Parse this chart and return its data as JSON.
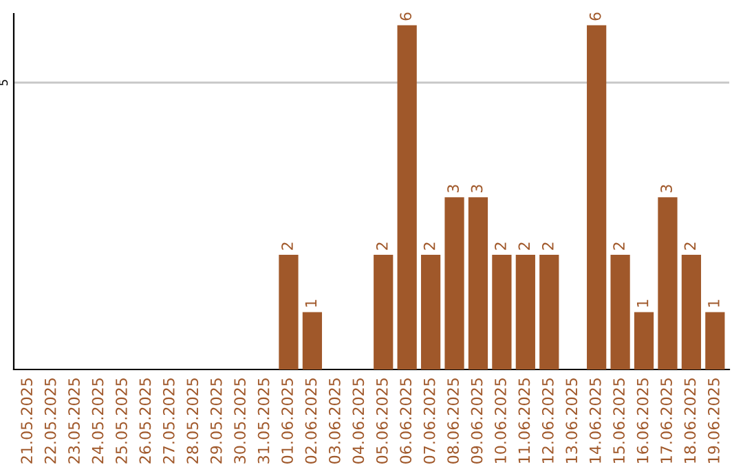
{
  "chart_data": {
    "type": "bar",
    "categories": [
      "21.05.2025",
      "22.05.2025",
      "23.05.2025",
      "24.05.2025",
      "25.05.2025",
      "26.05.2025",
      "27.05.2025",
      "28.05.2025",
      "29.05.2025",
      "30.05.2025",
      "31.05.2025",
      "01.06.2025",
      "02.06.2025",
      "03.06.2025",
      "04.06.2025",
      "05.06.2025",
      "06.06.2025",
      "07.06.2025",
      "08.06.2025",
      "09.06.2025",
      "10.06.2025",
      "11.06.2025",
      "12.06.2025",
      "13.06.2025",
      "14.06.2025",
      "15.06.2025",
      "16.06.2025",
      "17.06.2025",
      "18.06.2025",
      "19.06.2025"
    ],
    "values": [
      0,
      0,
      0,
      0,
      0,
      0,
      0,
      0,
      0,
      0,
      0,
      2,
      1,
      0,
      0,
      2,
      6,
      2,
      3,
      3,
      2,
      2,
      2,
      0,
      6,
      2,
      1,
      3,
      2,
      1
    ],
    "value_labels": [
      null,
      null,
      null,
      null,
      null,
      null,
      null,
      null,
      null,
      null,
      null,
      "2",
      "1",
      null,
      null,
      "2",
      "6",
      "2",
      "3",
      "3",
      "2",
      "2",
      "2",
      null,
      "6",
      "2",
      "1",
      "3",
      "2",
      "1"
    ],
    "color": "#a0582a",
    "ylim": [
      0,
      6.2
    ],
    "yticks": [
      5
    ],
    "grid": "y",
    "legend": false
  }
}
